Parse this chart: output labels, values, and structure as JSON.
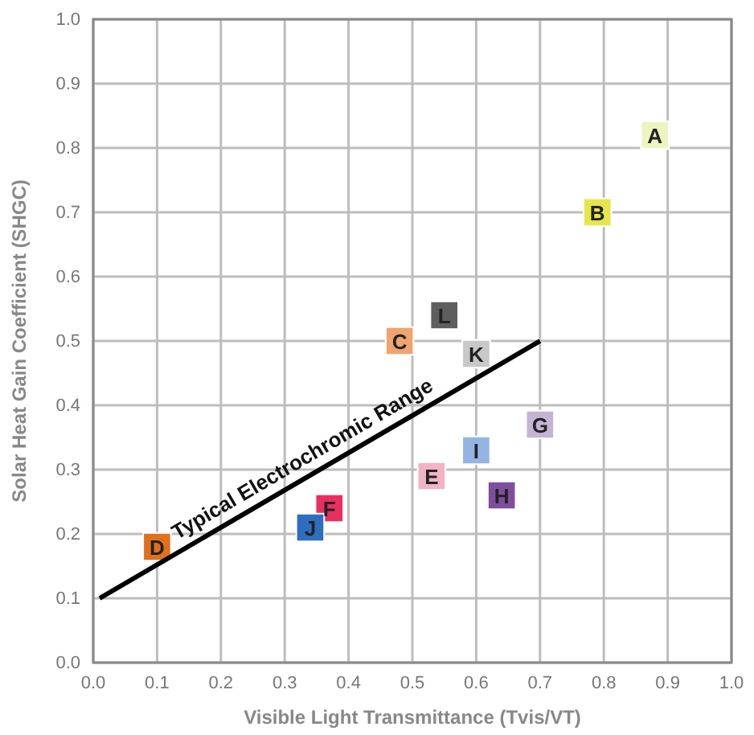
{
  "chart_data": {
    "type": "scatter",
    "xlabel": "Visible Light Transmittance (Tvis/VT)",
    "ylabel": "Solar Heat Gain Coefficient (SHGC)",
    "xlim": [
      0,
      1
    ],
    "ylim": [
      0,
      1
    ],
    "xticks": [
      {
        "value": 0,
        "label": "0.0"
      },
      0.1,
      0.2,
      0.3,
      0.4,
      0.5,
      0.6,
      0.7,
      0.8,
      0.9,
      {
        "value": 1,
        "label": "1.0"
      }
    ],
    "yticks": [
      {
        "value": 0,
        "label": "0.0"
      },
      0.1,
      0.2,
      0.3,
      0.4,
      0.5,
      0.6,
      0.7,
      0.8,
      0.9,
      {
        "value": 1,
        "label": "1.0"
      }
    ],
    "grid": true,
    "marker": "square",
    "series": [
      {
        "x": [
          0.88,
          0.79,
          0.48,
          0.1,
          0.53,
          0.37,
          0.7,
          0.64,
          0.6,
          0.34,
          0.6,
          0.55
        ],
        "values": [
          0.82,
          0.7,
          0.5,
          0.18,
          0.29,
          0.24,
          0.37,
          0.26,
          0.33,
          0.21,
          0.48,
          0.54
        ],
        "colors": [
          "#eef4c0",
          "#e6e64a",
          "#f0a46e",
          "#e0701e",
          "#f0b4c4",
          "#e8305e",
          "#c4b4d4",
          "#7e4e9e",
          "#94b4e4",
          "#2e6ec0",
          "#c8c8c8",
          "#5e5e5e"
        ],
        "value_labels": [
          "A",
          "B",
          "C",
          "D",
          "E",
          "F",
          "G",
          "H",
          "I",
          "J",
          "K",
          "L"
        ]
      },
      {
        "type": "line",
        "name": "Typical Electrochromic Range",
        "color": "#000000",
        "x": [
          0.01,
          0.7
        ],
        "values": [
          0.1,
          0.5
        ],
        "marker": "none",
        "line_style": "solid"
      }
    ]
  }
}
